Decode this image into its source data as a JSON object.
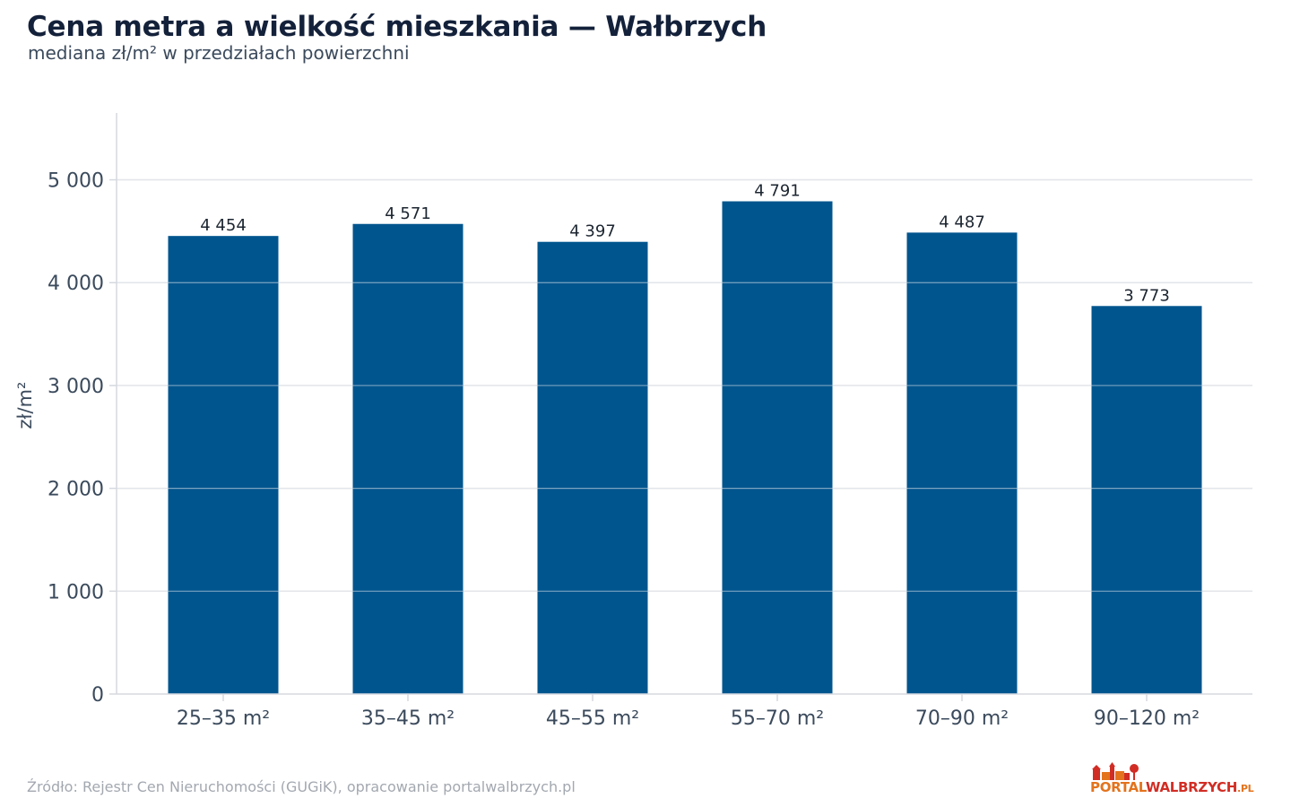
{
  "title": "Cena metra a wielkość mieszkania — Wałbrzych",
  "subtitle": "mediana zł/m² w przedziałach powierzchni",
  "source": "Źródło: Rejestr Cen Nieruchomości (GUGiK), opracowanie portalwalbrzych.pl",
  "logo": {
    "part1": "PORTAL",
    "part2": "WALBRZYCH",
    "part3": ".PL"
  },
  "colors": {
    "bar": "#00558e",
    "grid": "#e2e5ea",
    "axis": "#d5d9df",
    "text": "#3b4a5c"
  },
  "chart_data": {
    "type": "bar",
    "categories": [
      "25–35 m²",
      "35–45 m²",
      "45–55 m²",
      "55–70 m²",
      "70–90 m²",
      "90–120 m²"
    ],
    "values": [
      4454,
      4571,
      4397,
      4791,
      4487,
      3773
    ],
    "value_labels": [
      "4 454",
      "4 571",
      "4 397",
      "4 791",
      "4 487",
      "3 773"
    ],
    "ylabel": "zł/m²",
    "xlabel": "",
    "ylim": [
      0,
      5650
    ],
    "yticks": [
      0,
      1000,
      2000,
      3000,
      4000,
      5000
    ],
    "ytick_labels": [
      "0",
      "1 000",
      "2 000",
      "3 000",
      "4 000",
      "5 000"
    ],
    "grid": true
  }
}
